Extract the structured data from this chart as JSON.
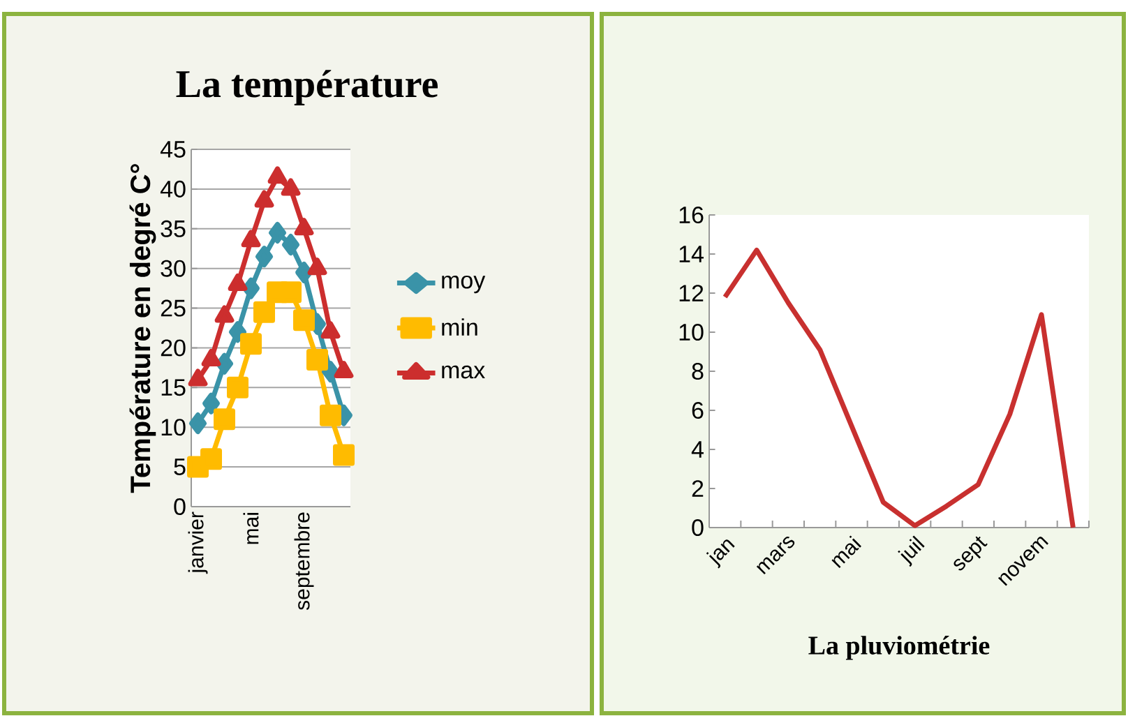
{
  "chart_data": [
    {
      "type": "line",
      "title": "La température",
      "ylabel": "Température en degré C°",
      "categories": [
        "janvier",
        null,
        null,
        null,
        "mai",
        null,
        null,
        null,
        "septembre",
        null,
        null,
        null
      ],
      "series": [
        {
          "name": "moy",
          "color": "#3a93a8",
          "marker": "diamond",
          "values": [
            10.5,
            13,
            18,
            22,
            27.5,
            31.5,
            34.5,
            33,
            29.5,
            23,
            17,
            11.5
          ]
        },
        {
          "name": "min",
          "color": "#ffbb00",
          "marker": "square",
          "values": [
            5,
            6,
            11,
            15,
            20.5,
            24.5,
            27,
            27,
            23.5,
            18.5,
            11.5,
            6.5
          ]
        },
        {
          "name": "max",
          "color": "#cc2e2e",
          "marker": "triangle",
          "values": [
            16,
            18.5,
            24,
            28,
            33.5,
            38.5,
            41.5,
            40,
            35,
            30,
            22,
            17
          ]
        }
      ],
      "ylim": [
        0,
        45
      ],
      "yticks": [
        0,
        5,
        10,
        15,
        20,
        25,
        30,
        35,
        40,
        45
      ],
      "grid": "y",
      "legend": "right"
    },
    {
      "type": "line",
      "title": "La pluviométrie",
      "categories": [
        "jan",
        null,
        "mars",
        null,
        "mai",
        null,
        "juil",
        null,
        "sept",
        null,
        "novem",
        null
      ],
      "values": [
        11.8,
        14.2,
        11.5,
        9.1,
        5.2,
        1.3,
        0.1,
        1.1,
        2.2,
        5.8,
        10.9,
        0
      ],
      "color": "#c8302f",
      "marker": "none",
      "ylim": [
        0,
        16
      ],
      "yticks": [
        0,
        2,
        4,
        6,
        8,
        10,
        12,
        14,
        16
      ]
    }
  ]
}
